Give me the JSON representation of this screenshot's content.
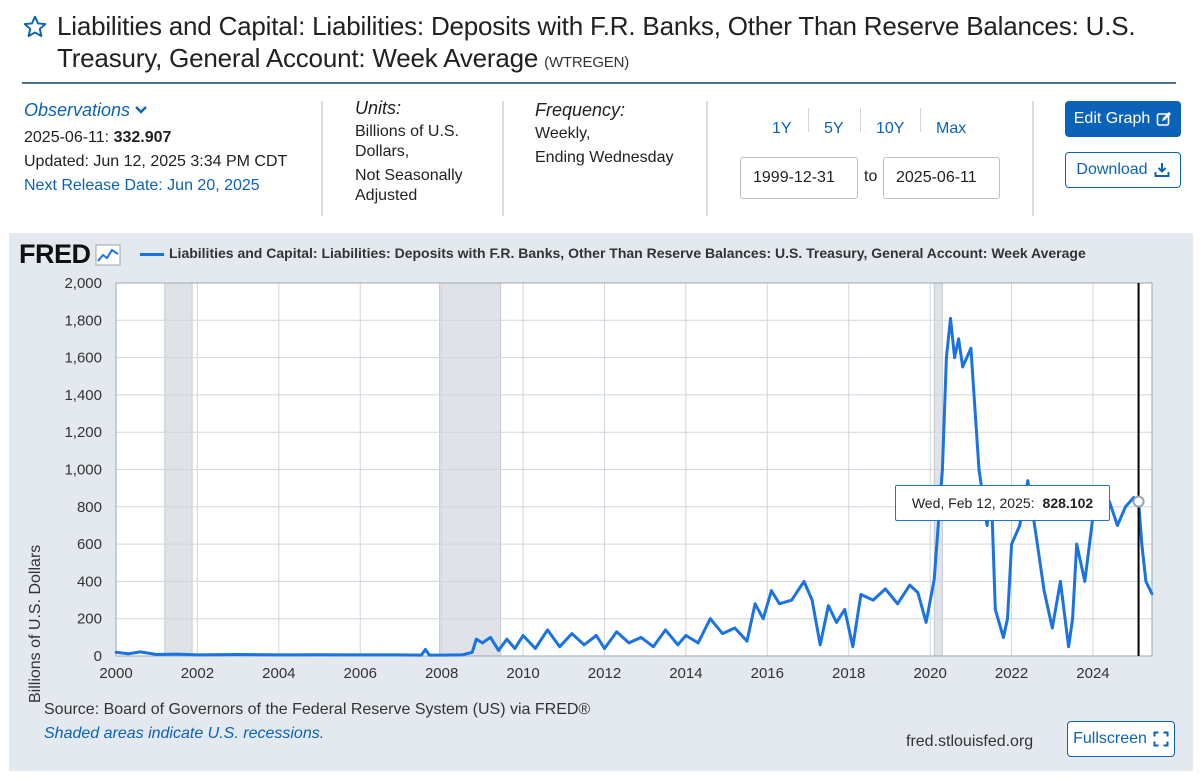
{
  "title": {
    "text": "Liabilities and Capital: Liabilities: Deposits with F.R. Banks, Other Than Reserve Balances: U.S. Treasury, General Account: Week Average",
    "series_id": "(WTREGEN)"
  },
  "observations": {
    "link_label": "Observations",
    "latest_date": "2025-06-11:",
    "latest_value": "332.907",
    "updated": "Updated: Jun 12, 2025 3:34 PM CDT",
    "next_release": "Next Release Date: Jun 20, 2025"
  },
  "units": {
    "heading": "Units:",
    "line1": "Billions of U.S. Dollars,",
    "line2": "Not Seasonally Adjusted"
  },
  "frequency": {
    "heading": "Frequency:",
    "line1": "Weekly,",
    "line2": "Ending Wednesday"
  },
  "range": {
    "options": [
      "1Y",
      "5Y",
      "10Y",
      "Max"
    ],
    "start": "1999-12-31",
    "to_label": "to",
    "end": "2025-06-11"
  },
  "buttons": {
    "edit_graph": "Edit Graph",
    "download": "Download",
    "fullscreen": "Fullscreen"
  },
  "graph": {
    "logo": "FRED",
    "legend": "Liabilities and Capital: Liabilities: Deposits with F.R. Banks, Other Than Reserve Balances: U.S. Treasury, General Account: Week Average",
    "source": "Source: Board of Governors of the Federal Reserve System (US) via FRED®",
    "note": "Shaded areas indicate U.S. recessions.",
    "site": "fred.stlouisfed.org",
    "tooltip_label": "Wed, Feb 12, 2025:",
    "tooltip_value": "828.102"
  },
  "colors": {
    "line": "#1a73e0",
    "accent": "#0b62b7",
    "panel": "#e3e9ef"
  },
  "chart_data": {
    "type": "line",
    "title": "Liabilities and Capital: Liabilities: Deposits with F.R. Banks, Other Than Reserve Balances: U.S. Treasury, General Account: Week Average",
    "ylabel": "Billions of U.S. Dollars",
    "xlabel": "",
    "ylim": [
      0,
      2000
    ],
    "xlim": [
      2000,
      2025.45
    ],
    "yticks": [
      0,
      200,
      400,
      600,
      800,
      1000,
      1200,
      1400,
      1600,
      1800,
      2000
    ],
    "xticks": [
      2000,
      2002,
      2004,
      2006,
      2008,
      2010,
      2012,
      2014,
      2016,
      2018,
      2020,
      2022,
      2024
    ],
    "recessions": [
      [
        2001.2,
        2001.87
      ],
      [
        2007.95,
        2009.45
      ],
      [
        2020.1,
        2020.3
      ]
    ],
    "marker_x": 2025.12,
    "series": [
      {
        "name": "WTREGEN",
        "x": [
          2000.0,
          2000.3,
          2000.6,
          2001.0,
          2001.5,
          2002.0,
          2003.0,
          2004.0,
          2005.0,
          2006.0,
          2007.0,
          2007.5,
          2007.6,
          2007.7,
          2008.0,
          2008.5,
          2008.75,
          2008.85,
          2009.0,
          2009.2,
          2009.4,
          2009.6,
          2009.8,
          2010.0,
          2010.3,
          2010.6,
          2010.9,
          2011.2,
          2011.5,
          2011.8,
          2012.0,
          2012.3,
          2012.6,
          2012.9,
          2013.2,
          2013.5,
          2013.8,
          2014.0,
          2014.3,
          2014.6,
          2014.9,
          2015.2,
          2015.5,
          2015.7,
          2015.9,
          2016.1,
          2016.3,
          2016.6,
          2016.9,
          2017.1,
          2017.3,
          2017.5,
          2017.7,
          2017.9,
          2018.1,
          2018.3,
          2018.6,
          2018.9,
          2019.2,
          2019.5,
          2019.7,
          2019.9,
          2020.1,
          2020.3,
          2020.4,
          2020.5,
          2020.6,
          2020.7,
          2020.8,
          2021.0,
          2021.2,
          2021.4,
          2021.5,
          2021.6,
          2021.8,
          2021.9,
          2022.0,
          2022.2,
          2022.4,
          2022.6,
          2022.8,
          2023.0,
          2023.2,
          2023.4,
          2023.5,
          2023.6,
          2023.8,
          2024.0,
          2024.2,
          2024.4,
          2024.6,
          2024.8,
          2025.0,
          2025.12,
          2025.2,
          2025.3,
          2025.45
        ],
        "values": [
          20,
          12,
          22,
          8,
          10,
          6,
          8,
          6,
          7,
          6,
          6,
          5,
          35,
          5,
          5,
          6,
          20,
          90,
          70,
          100,
          30,
          90,
          40,
          110,
          40,
          140,
          50,
          120,
          60,
          110,
          40,
          130,
          70,
          100,
          50,
          140,
          60,
          110,
          70,
          200,
          120,
          150,
          80,
          280,
          200,
          350,
          280,
          300,
          400,
          300,
          60,
          270,
          180,
          250,
          50,
          330,
          300,
          360,
          280,
          380,
          340,
          180,
          410,
          1000,
          1600,
          1810,
          1600,
          1700,
          1550,
          1650,
          1000,
          700,
          900,
          250,
          100,
          200,
          600,
          700,
          940,
          650,
          350,
          150,
          400,
          50,
          200,
          600,
          400,
          750,
          800,
          830,
          700,
          800,
          850,
          828,
          600,
          400,
          333
        ]
      }
    ]
  }
}
